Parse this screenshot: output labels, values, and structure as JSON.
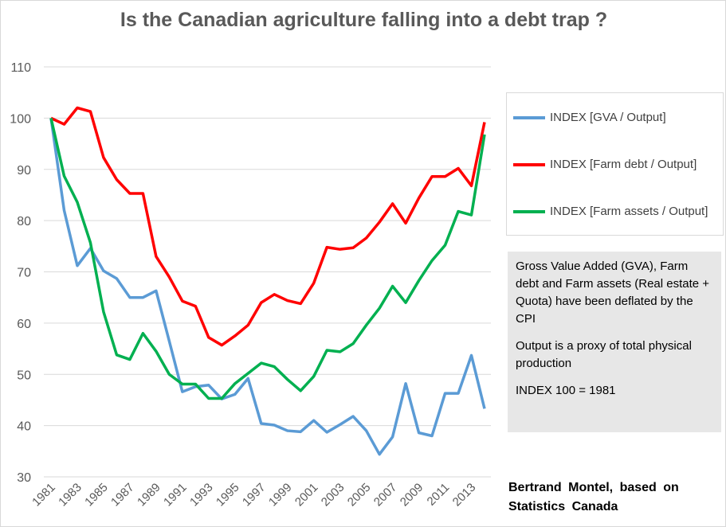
{
  "chart_data": {
    "type": "line",
    "title": "Is the Canadian agriculture falling into a debt trap ?",
    "xlabel": "",
    "ylabel": "",
    "ylim": [
      30,
      110
    ],
    "yticks": [
      30,
      40,
      50,
      60,
      70,
      80,
      90,
      100,
      110
    ],
    "x": [
      1981,
      1982,
      1983,
      1984,
      1985,
      1986,
      1987,
      1988,
      1989,
      1990,
      1991,
      1992,
      1993,
      1994,
      1995,
      1996,
      1997,
      1998,
      1999,
      2000,
      2001,
      2002,
      2003,
      2004,
      2005,
      2006,
      2007,
      2008,
      2009,
      2010,
      2011,
      2012,
      2013,
      2014
    ],
    "xtick_labels": [
      "1981",
      "1983",
      "1985",
      "1987",
      "1989",
      "1991",
      "1993",
      "1995",
      "1997",
      "1999",
      "2001",
      "2003",
      "2005",
      "2007",
      "2009",
      "2011",
      "2013"
    ],
    "grid": true,
    "legend_position": "right",
    "series": [
      {
        "name": "INDEX [GVA  / Output]",
        "color": "#5b9bd5",
        "values": [
          100,
          82,
          71.2,
          74.6,
          70.2,
          68.7,
          65,
          65,
          66.3,
          56.5,
          46.6,
          47.6,
          47.9,
          45.2,
          46.1,
          49.2,
          40.4,
          40.1,
          39,
          38.8,
          41,
          38.7,
          40.2,
          41.8,
          39,
          34.4,
          37.8,
          48.2,
          38.6,
          38,
          46.3,
          46.3,
          53.7,
          43.3
        ]
      },
      {
        "name": "INDEX [Farm debt  / Output]",
        "color": "#ff0000",
        "values": [
          100,
          98.8,
          102,
          101.3,
          92.3,
          88,
          85.3,
          85.3,
          73,
          69,
          64.3,
          63.3,
          57.2,
          55.7,
          57.5,
          59.6,
          64,
          65.6,
          64.4,
          63.8,
          67.8,
          74.8,
          74.4,
          74.7,
          76.6,
          79.7,
          83.3,
          79.5,
          84.4,
          88.6,
          88.6,
          90.2,
          86.8,
          99.2
        ]
      },
      {
        "name": "INDEX [Farm assets  / Output]",
        "color": "#00b050",
        "values": [
          100,
          88.7,
          83.6,
          75.7,
          62.2,
          53.8,
          52.9,
          58,
          54.5,
          50,
          48.1,
          48.1,
          45.3,
          45.3,
          48.2,
          50.2,
          52.2,
          51.5,
          49,
          46.8,
          49.6,
          54.7,
          54.4,
          56,
          59.6,
          62.9,
          67.2,
          64,
          68.3,
          72.2,
          75.2,
          81.8,
          81.1,
          96.8
        ]
      }
    ],
    "annotations": {
      "note": [
        "Gross Value Added (GVA), Farm debt and Farm assets (Real estate + Quota) have been deflated by the CPI",
        "Output is a proxy of total physical production",
        "INDEX 100 = 1981"
      ],
      "credit": [
        "Bertrand  Montel, based on",
        "Statistics  Canada"
      ]
    }
  }
}
